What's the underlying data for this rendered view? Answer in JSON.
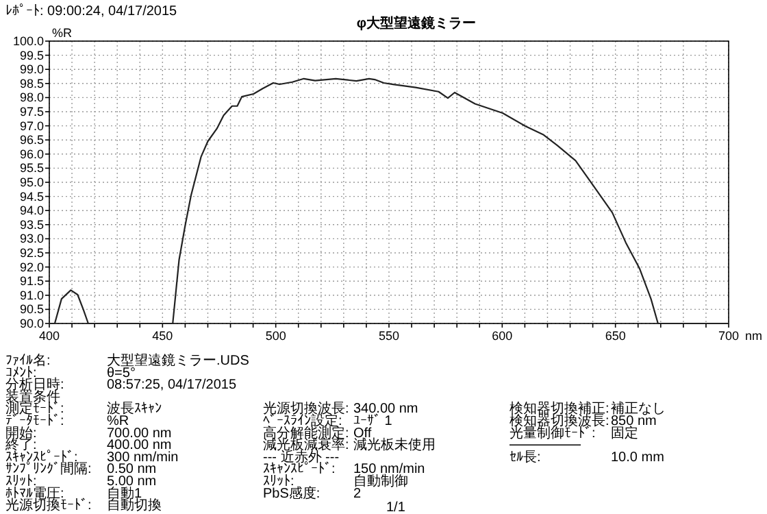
{
  "chart_data": {
    "type": "line",
    "title": "φ大型望遠鏡ミラー",
    "xlabel": "nm",
    "ylabel": "%R",
    "x": [
      400,
      402.4,
      405.4,
      409.5,
      412.5,
      415,
      417.2,
      454.5,
      457.3,
      460,
      462.6,
      467,
      470,
      474,
      477,
      480.7,
      483,
      485,
      490.2,
      494.2,
      498.9,
      501.7,
      507.3,
      512.4,
      517.4,
      526.5,
      535.6,
      541.2,
      543.7,
      547.7,
      551.8,
      561.8,
      571.9,
      576,
      579,
      588,
      600.2,
      610.2,
      618.3,
      624.4,
      632.4,
      640.5,
      648.6,
      654.6,
      660.7,
      665.7,
      668.8,
      700
    ],
    "series": [
      {
        "color": "#222222",
        "values": [
          90,
          90,
          90.87,
          91.18,
          91.02,
          90.5,
          90,
          90,
          92.25,
          93.47,
          94.54,
          95.9,
          96.45,
          96.9,
          97.37,
          97.7,
          97.7,
          98.03,
          98.13,
          98.32,
          98.52,
          98.47,
          98.55,
          98.67,
          98.6,
          98.67,
          98.59,
          98.67,
          98.64,
          98.52,
          98.47,
          98.36,
          98.21,
          97.98,
          98.18,
          97.78,
          97.45,
          96.99,
          96.68,
          96.3,
          95.77,
          94.85,
          93.93,
          92.86,
          91.94,
          90.87,
          90,
          90
        ]
      }
    ],
    "xlim": [
      400,
      700
    ],
    "xticks": [
      400,
      {
        "value": 410,
        "label": null
      },
      {
        "value": 420,
        "label": null
      },
      {
        "value": 430,
        "label": null
      },
      {
        "value": 440,
        "label": null
      },
      450,
      {
        "value": 460,
        "label": null
      },
      {
        "value": 470,
        "label": null
      },
      {
        "value": 480,
        "label": null
      },
      {
        "value": 490,
        "label": null
      },
      500,
      {
        "value": 510,
        "label": null
      },
      {
        "value": 520,
        "label": null
      },
      {
        "value": 530,
        "label": null
      },
      {
        "value": 540,
        "label": null
      },
      550,
      {
        "value": 560,
        "label": null
      },
      {
        "value": 570,
        "label": null
      },
      {
        "value": 580,
        "label": null
      },
      {
        "value": 590,
        "label": null
      },
      600,
      {
        "value": 610,
        "label": null
      },
      {
        "value": 620,
        "label": null
      },
      {
        "value": 630,
        "label": null
      },
      {
        "value": 640,
        "label": null
      },
      650,
      {
        "value": 660,
        "label": null
      },
      {
        "value": 670,
        "label": null
      },
      {
        "value": 680,
        "label": null
      },
      {
        "value": 690,
        "label": null
      },
      700
    ],
    "ylim": [
      90,
      100
    ],
    "yticks": [
      {
        "value": 90,
        "label": "90.0"
      },
      {
        "value": 90.5,
        "label": "90.5"
      },
      {
        "value": 91,
        "label": "91.0"
      },
      {
        "value": 91.5,
        "label": "91.5"
      },
      {
        "value": 92,
        "label": "92.0"
      },
      {
        "value": 92.5,
        "label": "92.5"
      },
      {
        "value": 93,
        "label": "93.0"
      },
      {
        "value": 93.5,
        "label": "93.5"
      },
      {
        "value": 94,
        "label": "94.0"
      },
      {
        "value": 94.5,
        "label": "94.5"
      },
      {
        "value": 95,
        "label": "95.0"
      },
      {
        "value": 95.5,
        "label": "95.5"
      },
      {
        "value": 96,
        "label": "96.0"
      },
      {
        "value": 96.5,
        "label": "96.5"
      },
      {
        "value": 97,
        "label": "97.0"
      },
      {
        "value": 97.5,
        "label": "97.5"
      },
      {
        "value": 98,
        "label": "98.0"
      },
      {
        "value": 98.5,
        "label": "98.5"
      },
      {
        "value": 99,
        "label": "99.0"
      },
      {
        "value": 99.5,
        "label": "99.5"
      },
      {
        "value": 100,
        "label": "100.0"
      }
    ],
    "grid": true,
    "annotations": [
      "ﾚﾎﾟｰﾄ: 09:00:24, 04/17/2015",
      "ﾌｧｲﾙ名:",
      "大型望遠鏡ミラー.UDS",
      "ｺﾒﾝﾄ:",
      "θ=5°",
      "分析日時:",
      "08:57:25, 04/17/2015",
      "装置条件",
      "測定ﾓｰﾄﾞ:",
      "波長ｽｷｬﾝ",
      "ﾃﾞｰﾀﾓｰﾄﾞ:",
      "%R",
      "開始:",
      "700.00 nm",
      "終了:",
      "400.00 nm",
      "ｽｷｬﾝｽﾋﾟｰﾄﾞ:",
      "300 nm/min",
      "ｻﾝﾌﾟﾘﾝｸﾞ間隔:",
      "0.50 nm",
      "ｽﾘｯﾄ:",
      "5.00 nm",
      "ﾎﾄﾏﾙ電圧:",
      "自動1",
      "光源切換ﾓｰﾄﾞ:",
      "自動切換",
      "光源切換波長:",
      "340.00 nm",
      "ﾍﾞｰｽﾗｲﾝ設定:",
      "ﾕｰｻﾞ 1",
      "高分解能測定:",
      "Off",
      "減光板減衰率:",
      "減光板未使用",
      "--- 近赤外 ---",
      "ｽｷｬﾝｽﾋﾟｰﾄﾞ:",
      "150 nm/min",
      "ｽﾘｯﾄ:",
      "自動制御",
      "PbS感度:",
      "2",
      "検知器切換補正:",
      "補正なし",
      "検知器切換波長:",
      "850 nm",
      "光量制御ﾓｰﾄﾞ:",
      "固定",
      "ｾﾙ長:",
      "10.0 mm",
      "1/1"
    ]
  }
}
